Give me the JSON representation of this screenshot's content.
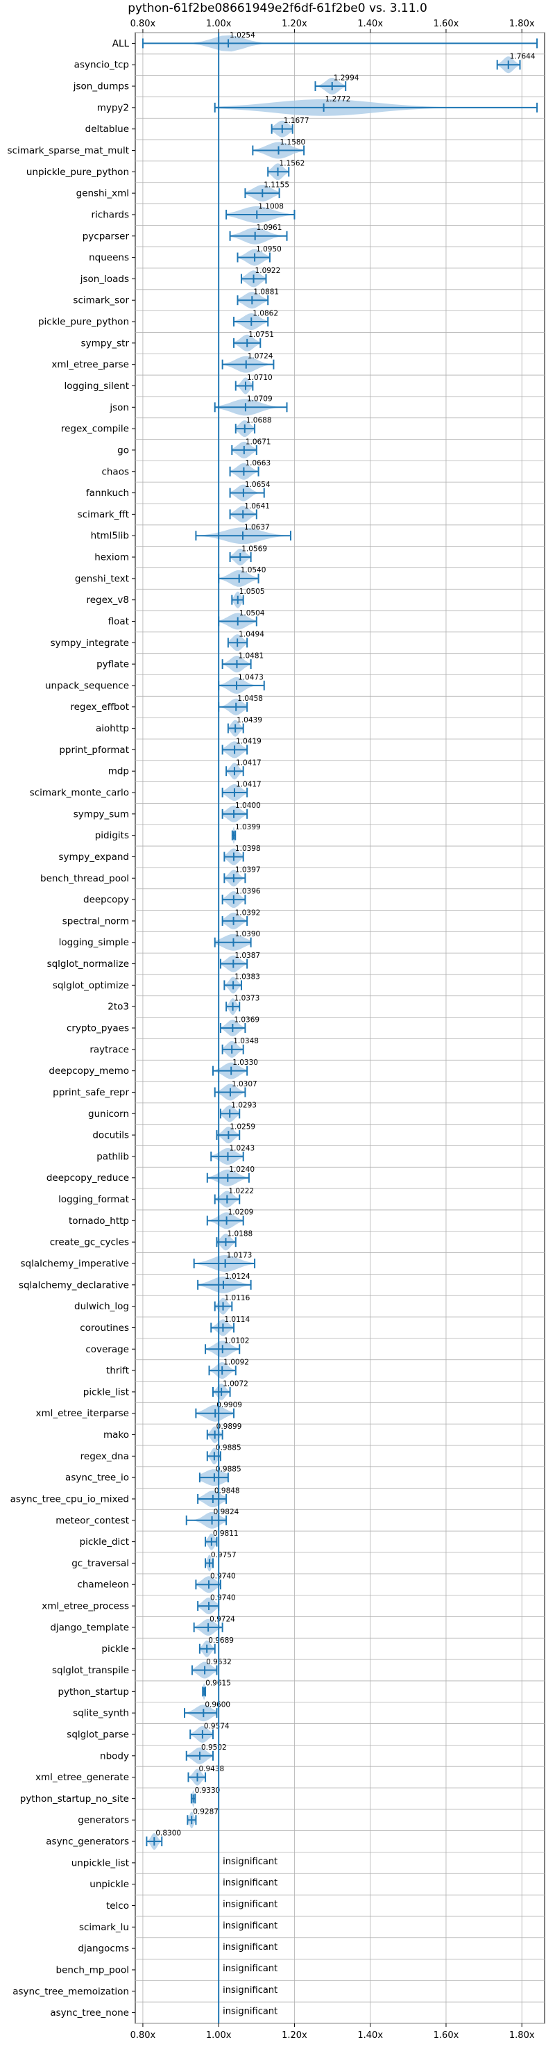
{
  "chart_data": {
    "type": "violin",
    "title": "python-61f2be08661949e2f6df-61f2be0 vs. 3.11.0",
    "xlim": [
      0.78,
      1.86
    ],
    "x_ticks": [
      0.8,
      1.0,
      1.2,
      1.4,
      1.6,
      1.8
    ],
    "x_tick_labels": [
      "0.80x",
      "1.00x",
      "1.20x",
      "1.40x",
      "1.60x",
      "1.80x"
    ],
    "baseline": 1.0,
    "grid": true,
    "accent_color": "#1f77b4",
    "violin_color": "#a6c8e6",
    "benchmarks": [
      {
        "name": "ALL",
        "mean": 1.0254,
        "label": "1.0254",
        "min": 0.8,
        "max": 1.84,
        "spread": 0.06
      },
      {
        "name": "asyncio_tcp",
        "mean": 1.7644,
        "label": "1.7644",
        "min": 1.735,
        "max": 1.795,
        "spread": 0.02
      },
      {
        "name": "json_dumps",
        "mean": 1.2994,
        "label": "1.2994",
        "min": 1.255,
        "max": 1.335,
        "spread": 0.025
      },
      {
        "name": "mypy2",
        "mean": 1.2772,
        "label": "1.2772",
        "min": 0.99,
        "max": 1.84,
        "spread": 0.2
      },
      {
        "name": "deltablue",
        "mean": 1.1677,
        "label": "1.1677",
        "min": 1.14,
        "max": 1.195,
        "spread": 0.025
      },
      {
        "name": "scimark_sparse_mat_mult",
        "mean": 1.158,
        "label": "1.1580",
        "min": 1.09,
        "max": 1.225,
        "spread": 0.045
      },
      {
        "name": "unpickle_pure_python",
        "mean": 1.1562,
        "label": "1.1562",
        "min": 1.13,
        "max": 1.185,
        "spread": 0.02
      },
      {
        "name": "genshi_xml",
        "mean": 1.1155,
        "label": "1.1155",
        "min": 1.07,
        "max": 1.16,
        "spread": 0.035
      },
      {
        "name": "richards",
        "mean": 1.1008,
        "label": "1.1008",
        "min": 1.02,
        "max": 1.2,
        "spread": 0.06
      },
      {
        "name": "pycparser",
        "mean": 1.0961,
        "label": "1.0961",
        "min": 1.03,
        "max": 1.18,
        "spread": 0.045
      },
      {
        "name": "nqueens",
        "mean": 1.095,
        "label": "1.0950",
        "min": 1.05,
        "max": 1.135,
        "spread": 0.03
      },
      {
        "name": "json_loads",
        "mean": 1.0922,
        "label": "1.0922",
        "min": 1.06,
        "max": 1.125,
        "spread": 0.025
      },
      {
        "name": "scimark_sor",
        "mean": 1.0881,
        "label": "1.0881",
        "min": 1.05,
        "max": 1.13,
        "spread": 0.03
      },
      {
        "name": "pickle_pure_python",
        "mean": 1.0862,
        "label": "1.0862",
        "min": 1.04,
        "max": 1.13,
        "spread": 0.03
      },
      {
        "name": "sympy_str",
        "mean": 1.0751,
        "label": "1.0751",
        "min": 1.04,
        "max": 1.11,
        "spread": 0.025
      },
      {
        "name": "xml_etree_parse",
        "mean": 1.0724,
        "label": "1.0724",
        "min": 1.01,
        "max": 1.145,
        "spread": 0.04
      },
      {
        "name": "logging_silent",
        "mean": 1.071,
        "label": "1.0710",
        "min": 1.045,
        "max": 1.09,
        "spread": 0.015
      },
      {
        "name": "json",
        "mean": 1.0709,
        "label": "1.0709",
        "min": 0.99,
        "max": 1.18,
        "spread": 0.055
      },
      {
        "name": "regex_compile",
        "mean": 1.0688,
        "label": "1.0688",
        "min": 1.045,
        "max": 1.095,
        "spread": 0.02
      },
      {
        "name": "go",
        "mean": 1.0671,
        "label": "1.0671",
        "min": 1.035,
        "max": 1.1,
        "spread": 0.025
      },
      {
        "name": "chaos",
        "mean": 1.0663,
        "label": "1.0663",
        "min": 1.03,
        "max": 1.105,
        "spread": 0.025
      },
      {
        "name": "fannkuch",
        "mean": 1.0654,
        "label": "1.0654",
        "min": 1.03,
        "max": 1.12,
        "spread": 0.025
      },
      {
        "name": "scimark_fft",
        "mean": 1.0641,
        "label": "1.0641",
        "min": 1.03,
        "max": 1.1,
        "spread": 0.025
      },
      {
        "name": "html5lib",
        "mean": 1.0637,
        "label": "1.0637",
        "min": 0.94,
        "max": 1.19,
        "spread": 0.07
      },
      {
        "name": "hexiom",
        "mean": 1.0569,
        "label": "1.0569",
        "min": 1.03,
        "max": 1.085,
        "spread": 0.02
      },
      {
        "name": "genshi_text",
        "mean": 1.054,
        "label": "1.0540",
        "min": 1.0,
        "max": 1.105,
        "spread": 0.035
      },
      {
        "name": "regex_v8",
        "mean": 1.0505,
        "label": "1.0505",
        "min": 1.035,
        "max": 1.065,
        "spread": 0.012
      },
      {
        "name": "float",
        "mean": 1.0504,
        "label": "1.0504",
        "min": 1.0,
        "max": 1.1,
        "spread": 0.035
      },
      {
        "name": "sympy_integrate",
        "mean": 1.0494,
        "label": "1.0494",
        "min": 1.025,
        "max": 1.075,
        "spread": 0.02
      },
      {
        "name": "pyflate",
        "mean": 1.0481,
        "label": "1.0481",
        "min": 1.01,
        "max": 1.085,
        "spread": 0.025
      },
      {
        "name": "unpack_sequence",
        "mean": 1.0473,
        "label": "1.0473",
        "min": 1.0,
        "max": 1.12,
        "spread": 0.03
      },
      {
        "name": "regex_effbot",
        "mean": 1.0458,
        "label": "1.0458",
        "min": 1.0,
        "max": 1.075,
        "spread": 0.025
      },
      {
        "name": "aiohttp",
        "mean": 1.0439,
        "label": "1.0439",
        "min": 1.025,
        "max": 1.065,
        "spread": 0.015
      },
      {
        "name": "pprint_pformat",
        "mean": 1.0419,
        "label": "1.0419",
        "min": 1.01,
        "max": 1.075,
        "spread": 0.025
      },
      {
        "name": "mdp",
        "mean": 1.0417,
        "label": "1.0417",
        "min": 1.02,
        "max": 1.065,
        "spread": 0.015
      },
      {
        "name": "scimark_monte_carlo",
        "mean": 1.0417,
        "label": "1.0417",
        "min": 1.01,
        "max": 1.075,
        "spread": 0.025
      },
      {
        "name": "sympy_sum",
        "mean": 1.04,
        "label": "1.0400",
        "min": 1.01,
        "max": 1.075,
        "spread": 0.025
      },
      {
        "name": "pidigits",
        "mean": 1.0399,
        "label": "1.0399",
        "min": 1.036,
        "max": 1.044,
        "spread": 0.004
      },
      {
        "name": "sympy_expand",
        "mean": 1.0398,
        "label": "1.0398",
        "min": 1.015,
        "max": 1.065,
        "spread": 0.02
      },
      {
        "name": "bench_thread_pool",
        "mean": 1.0397,
        "label": "1.0397",
        "min": 1.015,
        "max": 1.07,
        "spread": 0.018
      },
      {
        "name": "deepcopy",
        "mean": 1.0396,
        "label": "1.0396",
        "min": 1.01,
        "max": 1.07,
        "spread": 0.022
      },
      {
        "name": "spectral_norm",
        "mean": 1.0392,
        "label": "1.0392",
        "min": 1.01,
        "max": 1.075,
        "spread": 0.025
      },
      {
        "name": "logging_simple",
        "mean": 1.039,
        "label": "1.0390",
        "min": 0.99,
        "max": 1.085,
        "spread": 0.04
      },
      {
        "name": "sqlglot_normalize",
        "mean": 1.0387,
        "label": "1.0387",
        "min": 1.005,
        "max": 1.075,
        "spread": 0.025
      },
      {
        "name": "sqlglot_optimize",
        "mean": 1.0383,
        "label": "1.0383",
        "min": 1.015,
        "max": 1.06,
        "spread": 0.015
      },
      {
        "name": "2to3",
        "mean": 1.0373,
        "label": "1.0373",
        "min": 1.02,
        "max": 1.055,
        "spread": 0.012
      },
      {
        "name": "crypto_pyaes",
        "mean": 1.0369,
        "label": "1.0369",
        "min": 1.005,
        "max": 1.07,
        "spread": 0.022
      },
      {
        "name": "raytrace",
        "mean": 1.0348,
        "label": "1.0348",
        "min": 1.01,
        "max": 1.065,
        "spread": 0.02
      },
      {
        "name": "deepcopy_memo",
        "mean": 1.033,
        "label": "1.0330",
        "min": 0.985,
        "max": 1.075,
        "spread": 0.03
      },
      {
        "name": "pprint_safe_repr",
        "mean": 1.0307,
        "label": "1.0307",
        "min": 0.99,
        "max": 1.07,
        "spread": 0.025
      },
      {
        "name": "gunicorn",
        "mean": 1.0293,
        "label": "1.0293",
        "min": 1.005,
        "max": 1.055,
        "spread": 0.02
      },
      {
        "name": "docutils",
        "mean": 1.0259,
        "label": "1.0259",
        "min": 0.995,
        "max": 1.055,
        "spread": 0.02
      },
      {
        "name": "pathlib",
        "mean": 1.0243,
        "label": "1.0243",
        "min": 0.98,
        "max": 1.065,
        "spread": 0.03
      },
      {
        "name": "deepcopy_reduce",
        "mean": 1.024,
        "label": "1.0240",
        "min": 0.97,
        "max": 1.08,
        "spread": 0.035
      },
      {
        "name": "logging_format",
        "mean": 1.0222,
        "label": "1.0222",
        "min": 0.99,
        "max": 1.055,
        "spread": 0.022
      },
      {
        "name": "tornado_http",
        "mean": 1.0209,
        "label": "1.0209",
        "min": 0.97,
        "max": 1.065,
        "spread": 0.03
      },
      {
        "name": "create_gc_cycles",
        "mean": 1.0188,
        "label": "1.0188",
        "min": 0.995,
        "max": 1.045,
        "spread": 0.018
      },
      {
        "name": "sqlalchemy_imperative",
        "mean": 1.0173,
        "label": "1.0173",
        "min": 0.935,
        "max": 1.095,
        "spread": 0.05
      },
      {
        "name": "sqlalchemy_declarative",
        "mean": 1.0124,
        "label": "1.0124",
        "min": 0.945,
        "max": 1.085,
        "spread": 0.045
      },
      {
        "name": "dulwich_log",
        "mean": 1.0116,
        "label": "1.0116",
        "min": 0.99,
        "max": 1.035,
        "spread": 0.015
      },
      {
        "name": "coroutines",
        "mean": 1.0114,
        "label": "1.0114",
        "min": 0.98,
        "max": 1.04,
        "spread": 0.02
      },
      {
        "name": "coverage",
        "mean": 1.0102,
        "label": "1.0102",
        "min": 0.965,
        "max": 1.055,
        "spread": 0.03
      },
      {
        "name": "thrift",
        "mean": 1.0092,
        "label": "1.0092",
        "min": 0.975,
        "max": 1.045,
        "spread": 0.022
      },
      {
        "name": "pickle_list",
        "mean": 1.0072,
        "label": "1.0072",
        "min": 0.985,
        "max": 1.03,
        "spread": 0.015
      },
      {
        "name": "xml_etree_iterparse",
        "mean": 0.9909,
        "label": "0.9909",
        "min": 0.94,
        "max": 1.04,
        "spread": 0.035
      },
      {
        "name": "mako",
        "mean": 0.9899,
        "label": "0.9899",
        "min": 0.97,
        "max": 1.01,
        "spread": 0.014
      },
      {
        "name": "regex_dna",
        "mean": 0.9885,
        "label": "0.9885",
        "min": 0.97,
        "max": 1.005,
        "spread": 0.012
      },
      {
        "name": "async_tree_io",
        "mean": 0.9885,
        "label": "0.9885",
        "min": 0.95,
        "max": 1.025,
        "spread": 0.04
      },
      {
        "name": "async_tree_cpu_io_mixed",
        "mean": 0.9848,
        "label": "0.9848",
        "min": 0.945,
        "max": 1.02,
        "spread": 0.03
      },
      {
        "name": "meteor_contest",
        "mean": 0.9824,
        "label": "0.9824",
        "min": 0.915,
        "max": 1.02,
        "spread": 0.03
      },
      {
        "name": "pickle_dict",
        "mean": 0.9811,
        "label": "0.9811",
        "min": 0.965,
        "max": 0.995,
        "spread": 0.012
      },
      {
        "name": "gc_traversal",
        "mean": 0.9757,
        "label": "0.9757",
        "min": 0.965,
        "max": 0.985,
        "spread": 0.008
      },
      {
        "name": "chameleon",
        "mean": 0.974,
        "label": "0.9740",
        "min": 0.94,
        "max": 1.005,
        "spread": 0.025
      },
      {
        "name": "xml_etree_process",
        "mean": 0.974,
        "label": "0.9740",
        "min": 0.945,
        "max": 1.0,
        "spread": 0.022
      },
      {
        "name": "django_template",
        "mean": 0.9724,
        "label": "0.9724",
        "min": 0.935,
        "max": 1.01,
        "spread": 0.025
      },
      {
        "name": "pickle",
        "mean": 0.9689,
        "label": "0.9689",
        "min": 0.95,
        "max": 0.99,
        "spread": 0.014
      },
      {
        "name": "sqlglot_transpile",
        "mean": 0.9632,
        "label": "0.9632",
        "min": 0.93,
        "max": 0.995,
        "spread": 0.025
      },
      {
        "name": "python_startup",
        "mean": 0.9615,
        "label": "0.9615",
        "min": 0.958,
        "max": 0.965,
        "spread": 0.004
      },
      {
        "name": "sqlite_synth",
        "mean": 0.96,
        "label": "0.9600",
        "min": 0.91,
        "max": 0.995,
        "spread": 0.03
      },
      {
        "name": "sqlglot_parse",
        "mean": 0.9574,
        "label": "0.9574",
        "min": 0.925,
        "max": 0.985,
        "spread": 0.022
      },
      {
        "name": "nbody",
        "mean": 0.9502,
        "label": "0.9502",
        "min": 0.915,
        "max": 0.985,
        "spread": 0.025
      },
      {
        "name": "xml_etree_generate",
        "mean": 0.9438,
        "label": "0.9438",
        "min": 0.92,
        "max": 0.965,
        "spread": 0.015
      },
      {
        "name": "python_startup_no_site",
        "mean": 0.933,
        "label": "0.9330",
        "min": 0.928,
        "max": 0.938,
        "spread": 0.004
      },
      {
        "name": "generators",
        "mean": 0.9287,
        "label": "0.9287",
        "min": 0.918,
        "max": 0.94,
        "spread": 0.008
      },
      {
        "name": "async_generators",
        "mean": 0.83,
        "label": "0.8300",
        "min": 0.81,
        "max": 0.85,
        "spread": 0.012
      },
      {
        "name": "unpickle_list",
        "insignificant": true,
        "label": "insignificant"
      },
      {
        "name": "unpickle",
        "insignificant": true,
        "label": "insignificant"
      },
      {
        "name": "telco",
        "insignificant": true,
        "label": "insignificant"
      },
      {
        "name": "scimark_lu",
        "insignificant": true,
        "label": "insignificant"
      },
      {
        "name": "djangocms",
        "insignificant": true,
        "label": "insignificant"
      },
      {
        "name": "bench_mp_pool",
        "insignificant": true,
        "label": "insignificant"
      },
      {
        "name": "async_tree_memoization",
        "insignificant": true,
        "label": "insignificant"
      },
      {
        "name": "async_tree_none",
        "insignificant": true,
        "label": "insignificant"
      }
    ]
  }
}
